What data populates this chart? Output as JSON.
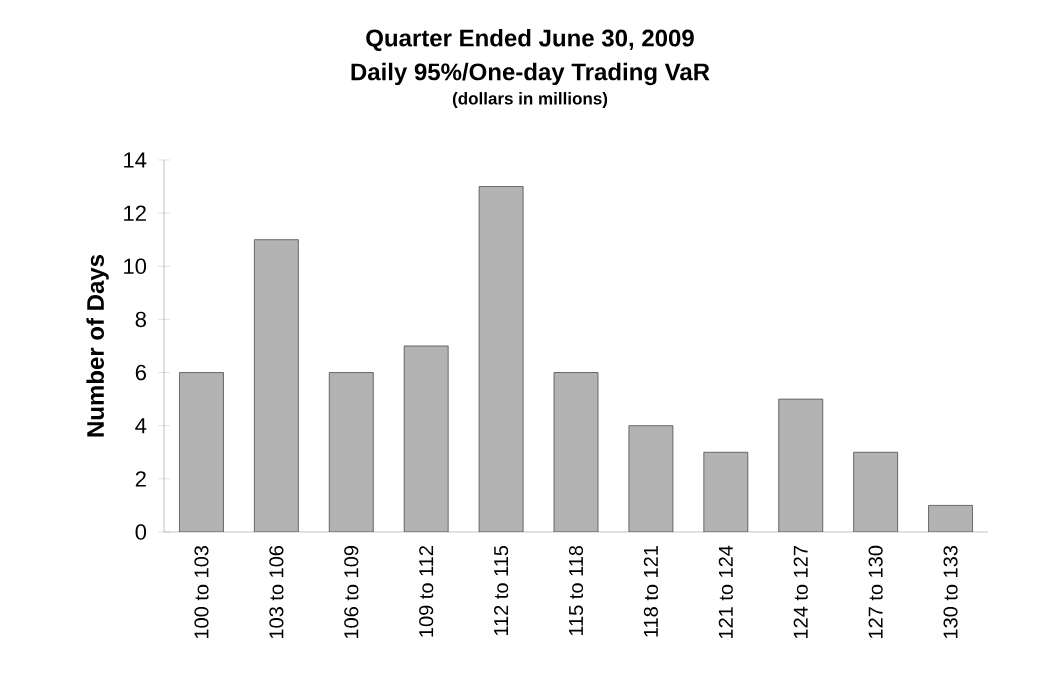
{
  "chart_data": {
    "type": "bar",
    "title": "Quarter Ended June 30, 2009",
    "subtitle": "Daily 95%/One-day Trading VaR",
    "annotations": [
      "(dollars in millions)"
    ],
    "ylabel": "Number of Days",
    "categories": [
      "100 to 103",
      "103 to 106",
      "106 to 109",
      "109 to 112",
      "112 to 115",
      "115 to 118",
      "118 to 121",
      "121 to 124",
      "124 to 127",
      "127 to 130",
      "130 to 133"
    ],
    "values": [
      6,
      11,
      6,
      7,
      13,
      6,
      4,
      3,
      5,
      3,
      1
    ],
    "color": "#b3b3b3",
    "ylim": [
      0,
      14
    ],
    "yticks": [
      0,
      2,
      4,
      6,
      8,
      10,
      12,
      14
    ],
    "grid": false
  }
}
